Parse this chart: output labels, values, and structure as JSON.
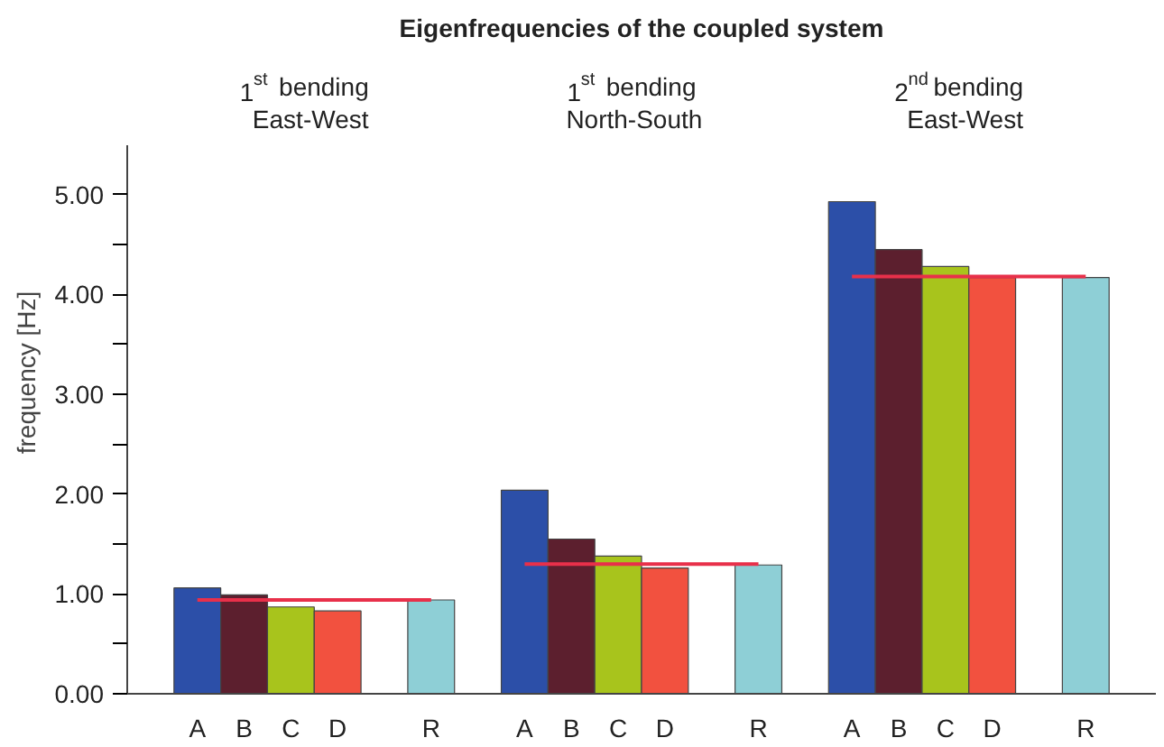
{
  "chart_data": {
    "type": "bar",
    "title": "Eigenfrequencies of the coupled system",
    "ylabel": "frequency [Hz]",
    "annotations": [
      "1$^{st}$ bending\nEast-West",
      "1$^{st}$ bending\nNorth-South",
      "2$^{nd}$ bending\nEast-West"
    ],
    "categories": [
      null,
      "A",
      "B",
      "C",
      "D",
      null,
      "R",
      null,
      "A",
      "B",
      "C",
      "D",
      null,
      "R",
      null,
      "A",
      "B",
      "C",
      "D",
      null,
      "R",
      null
    ],
    "ylim": [
      0,
      5.5
    ],
    "yticks": [
      {
        "value": 0,
        "label": "0.00"
      },
      {
        "value": 0.5,
        "label": null
      },
      {
        "value": 1,
        "label": "1.00"
      },
      {
        "value": 1.5,
        "label": null
      },
      {
        "value": 2,
        "label": "2.00"
      },
      {
        "value": 2.5,
        "label": null
      },
      {
        "value": 3,
        "label": "3.00"
      },
      {
        "value": 3.5,
        "label": null
      },
      {
        "value": 4,
        "label": "4.00"
      },
      {
        "value": 4.5,
        "label": null
      },
      {
        "value": 5,
        "label": "5.00"
      }
    ],
    "grid": false,
    "series": [
      {
        "values": [
          null,
          1.06,
          0.99,
          0.87,
          0.83,
          null,
          0.94,
          null,
          2.04,
          1.55,
          1.38,
          1.26,
          null,
          1.29,
          null,
          4.93,
          4.45,
          4.28,
          4.17,
          null,
          4.17,
          null
        ],
        "colors": [
          null,
          "#2c4fa8",
          "#5c1f2e",
          "#a8c41c",
          "#f2513f",
          null,
          "#8ecfd6",
          null,
          "#2c4fa8",
          "#5c1f2e",
          "#a8c41c",
          "#f2513f",
          null,
          "#8ecfd6",
          null,
          "#2c4fa8",
          "#5c1f2e",
          "#a8c41c",
          "#f2513f",
          null,
          "#8ecfd6",
          null
        ]
      },
      {
        "type": "line",
        "color": "#e8304a",
        "values": [
          null,
          0.94,
          0.94,
          0.94,
          0.94,
          0.94,
          0.94,
          null,
          null,
          null,
          null,
          null,
          null,
          null,
          null,
          null,
          null,
          null,
          null,
          null,
          null,
          null
        ]
      },
      {
        "type": "line",
        "color": "#e8304a",
        "values": [
          null,
          null,
          null,
          null,
          null,
          null,
          null,
          null,
          1.3,
          1.3,
          1.3,
          1.3,
          1.3,
          1.3,
          null,
          null,
          null,
          null,
          null,
          null,
          null,
          null
        ]
      },
      {
        "type": "line",
        "color": "#e8304a",
        "values": [
          null,
          null,
          null,
          null,
          null,
          null,
          null,
          null,
          null,
          null,
          null,
          null,
          null,
          null,
          null,
          4.18,
          4.18,
          4.18,
          4.18,
          4.18,
          4.18,
          null
        ]
      }
    ]
  }
}
